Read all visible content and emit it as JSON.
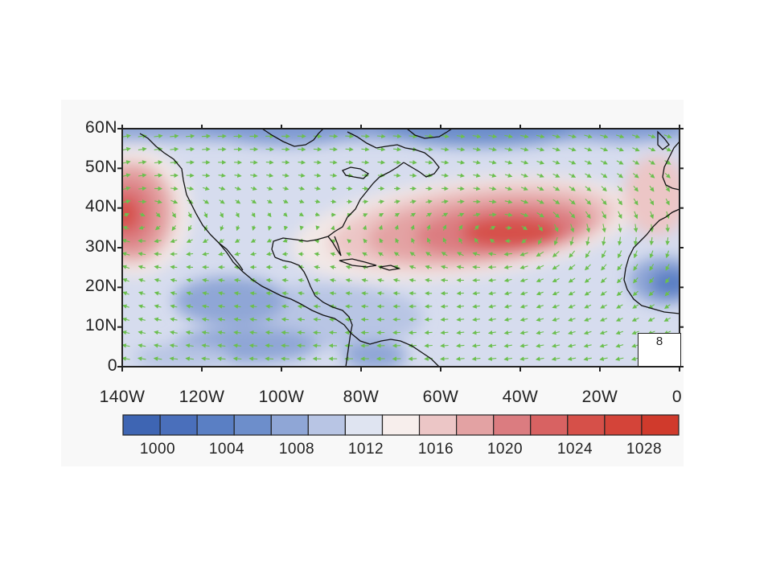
{
  "map": {
    "latitude_labels": [
      "60N",
      "50N",
      "40N",
      "30N",
      "20N",
      "10N",
      "0"
    ],
    "longitude_labels": [
      "140W",
      "120W",
      "100W",
      "80W",
      "60W",
      "40W",
      "20W",
      "0"
    ],
    "extent": {
      "lon": [
        -140,
        0
      ],
      "lat": [
        0,
        60
      ]
    },
    "wind_vectors": {
      "color": "#6bbf4e",
      "reference_label": "8"
    },
    "pressure_features": [
      {
        "type": "high",
        "name": "",
        "center_lon": -40,
        "center_lat": 33,
        "value": 1028
      },
      {
        "type": "high",
        "name": "",
        "center_lon": -140,
        "center_lat": 37,
        "value": 1024
      },
      {
        "type": "low",
        "name": "",
        "center_lon": -8,
        "center_lat": 22,
        "value": 1004
      }
    ]
  },
  "colorbar": {
    "labels": [
      "1000",
      "1004",
      "1008",
      "1012",
      "1016",
      "1020",
      "1024",
      "1028"
    ],
    "colors": [
      "#3e65b3",
      "#4a6fbb",
      "#5a7fc4",
      "#6d8ecb",
      "#8fa6d6",
      "#b8c5e4",
      "#dfe4f1",
      "#f7eeec",
      "#ecc6c6",
      "#e3a2a3",
      "#db7c80",
      "#d86262",
      "#d65049",
      "#d44439",
      "#d03a2c"
    ]
  }
}
